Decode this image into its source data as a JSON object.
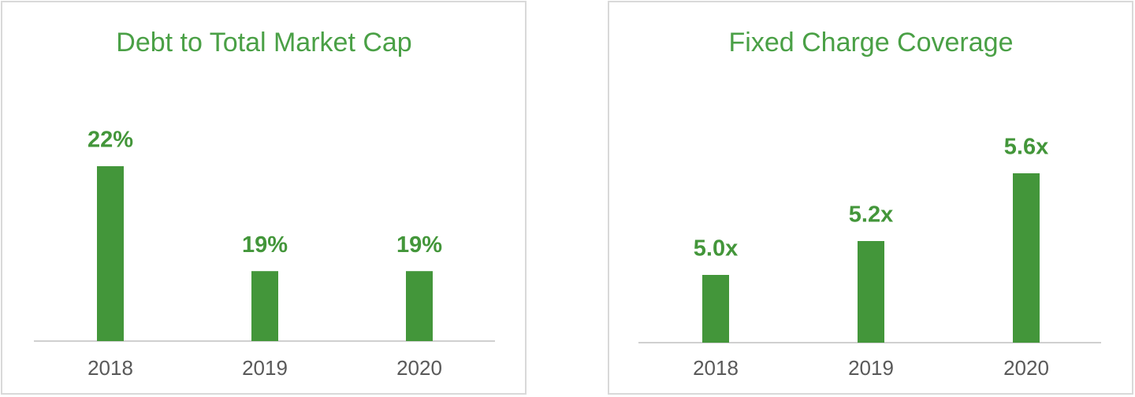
{
  "chart_data": [
    {
      "type": "bar",
      "title": "Debt to Total Market Cap",
      "categories": [
        "2018",
        "2019",
        "2020"
      ],
      "values": [
        22,
        19,
        19
      ],
      "value_labels": [
        "22%",
        "19%",
        "19%"
      ],
      "color": "#43963a",
      "ylim": [
        17,
        22
      ]
    },
    {
      "type": "bar",
      "title": "Fixed Charge Coverage",
      "categories": [
        "2018",
        "2019",
        "2020"
      ],
      "values": [
        5.0,
        5.2,
        5.6
      ],
      "value_labels": [
        "5.0x",
        "5.2x",
        "5.6x"
      ],
      "color": "#43963a",
      "ylim": [
        4.6,
        5.6
      ]
    }
  ]
}
